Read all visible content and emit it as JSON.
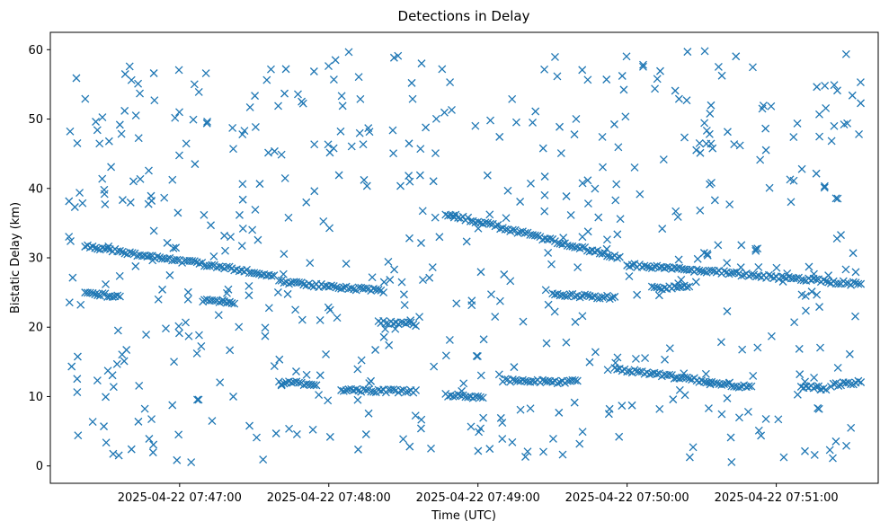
{
  "chart_data": {
    "type": "scatter",
    "title": "Detections in Delay",
    "xlabel": "Time (UTC)",
    "ylabel": "Bistatic Delay (km)",
    "marker": "x",
    "color": "#1f77b4",
    "x_start": "2025-04-22T07:46:15",
    "x_end": "2025-04-22T07:51:34",
    "xlim": [
      "2025-04-22T07:46:08",
      "2025-04-22T07:51:41"
    ],
    "ylim": [
      -2.5,
      62.5
    ],
    "xticks": [
      {
        "time": "2025-04-22T07:47:00",
        "label": "2025-04-22 07:47:00"
      },
      {
        "time": "2025-04-22T07:48:00",
        "label": "2025-04-22 07:48:00"
      },
      {
        "time": "2025-04-22T07:49:00",
        "label": "2025-04-22 07:49:00"
      },
      {
        "time": "2025-04-22T07:50:00",
        "label": "2025-04-22 07:50:00"
      },
      {
        "time": "2025-04-22T07:51:00",
        "label": "2025-04-22 07:51:00"
      }
    ],
    "yticks": [
      0,
      10,
      20,
      30,
      40,
      50,
      60
    ],
    "grid": false,
    "legend": "none",
    "tracks": [
      {
        "t_start": "2025-04-22T07:46:22",
        "t_end": "2025-04-22T07:47:38",
        "delay_start": 31.7,
        "delay_end": 27.5
      },
      {
        "t_start": "2025-04-22T07:47:40",
        "t_end": "2025-04-22T07:48:22",
        "delay_start": 26.5,
        "delay_end": 25.2
      },
      {
        "t_start": "2025-04-22T07:48:47",
        "t_end": "2025-04-22T07:49:57",
        "delay_start": 36.4,
        "delay_end": 30.0
      },
      {
        "t_start": "2025-04-22T07:50:00",
        "t_end": "2025-04-22T07:51:34",
        "delay_start": 29.0,
        "delay_end": 26.2
      },
      {
        "t_start": "2025-04-22T07:46:22",
        "t_end": "2025-04-22T07:46:36",
        "delay_start": 24.8,
        "delay_end": 24.5
      },
      {
        "t_start": "2025-04-22T07:47:10",
        "t_end": "2025-04-22T07:47:22",
        "delay_start": 23.8,
        "delay_end": 23.4
      },
      {
        "t_start": "2025-04-22T07:48:20",
        "t_end": "2025-04-22T07:48:35",
        "delay_start": 20.8,
        "delay_end": 20.4
      },
      {
        "t_start": "2025-04-22T07:49:30",
        "t_end": "2025-04-22T07:49:55",
        "delay_start": 24.7,
        "delay_end": 24.3
      },
      {
        "t_start": "2025-04-22T07:50:10",
        "t_end": "2025-04-22T07:50:25",
        "delay_start": 25.6,
        "delay_end": 25.9
      },
      {
        "t_start": "2025-04-22T07:47:40",
        "t_end": "2025-04-22T07:47:55",
        "delay_start": 12.0,
        "delay_end": 11.8
      },
      {
        "t_start": "2025-04-22T07:48:05",
        "t_end": "2025-04-22T07:48:35",
        "delay_start": 11.0,
        "delay_end": 10.7
      },
      {
        "t_start": "2025-04-22T07:48:47",
        "t_end": "2025-04-22T07:49:02",
        "delay_start": 10.2,
        "delay_end": 9.9
      },
      {
        "t_start": "2025-04-22T07:49:10",
        "t_end": "2025-04-22T07:49:40",
        "delay_start": 12.3,
        "delay_end": 12.1
      },
      {
        "t_start": "2025-04-22T07:49:55",
        "t_end": "2025-04-22T07:50:50",
        "delay_start": 14.0,
        "delay_end": 11.3
      },
      {
        "t_start": "2025-04-22T07:51:10",
        "t_end": "2025-04-22T07:51:20",
        "delay_start": 11.4,
        "delay_end": 11.2
      },
      {
        "t_start": "2025-04-22T07:51:22",
        "t_end": "2025-04-22T07:51:34",
        "delay_start": 11.6,
        "delay_end": 12.1
      }
    ],
    "clutter_count": 560,
    "clutter_ylim": [
      0.5,
      59.8
    ]
  }
}
